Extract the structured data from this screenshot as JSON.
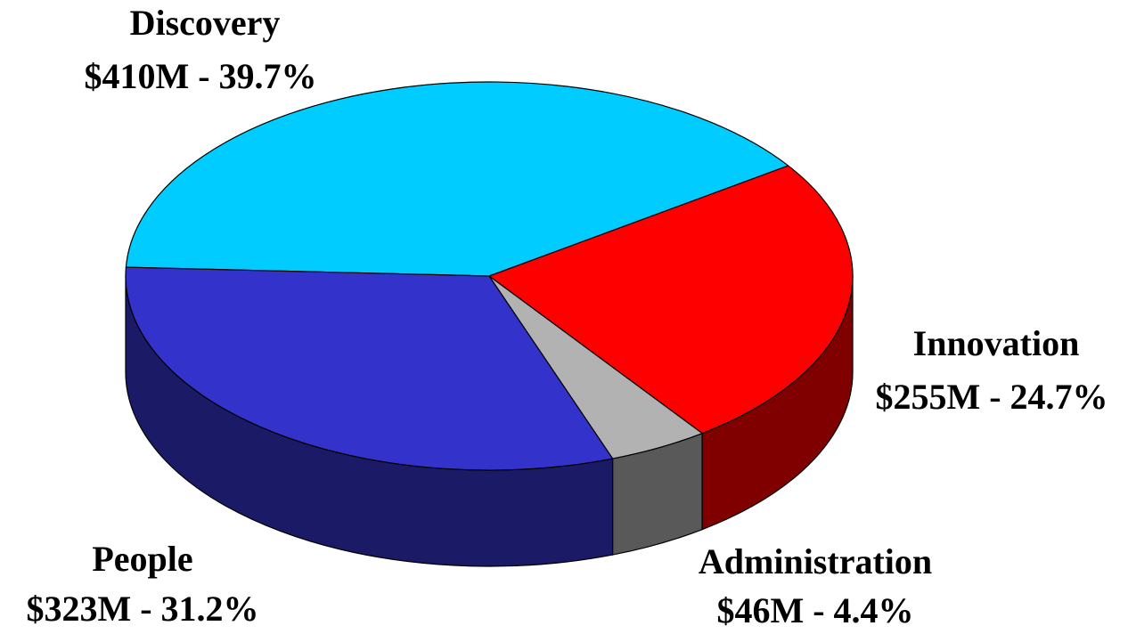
{
  "chart_data": {
    "type": "pie",
    "categories": [
      "Discovery",
      "Innovation",
      "Administration",
      "People"
    ],
    "values": [
      410,
      255,
      46,
      323
    ],
    "value_labels": [
      "$410M - 39.7%",
      "$255M - 24.7%",
      "$46M - 4.4%",
      "$323M - 31.2%"
    ],
    "colors": [
      "#00ccff",
      "#ff0000",
      "#b2b2b2",
      "#3333cc"
    ]
  }
}
